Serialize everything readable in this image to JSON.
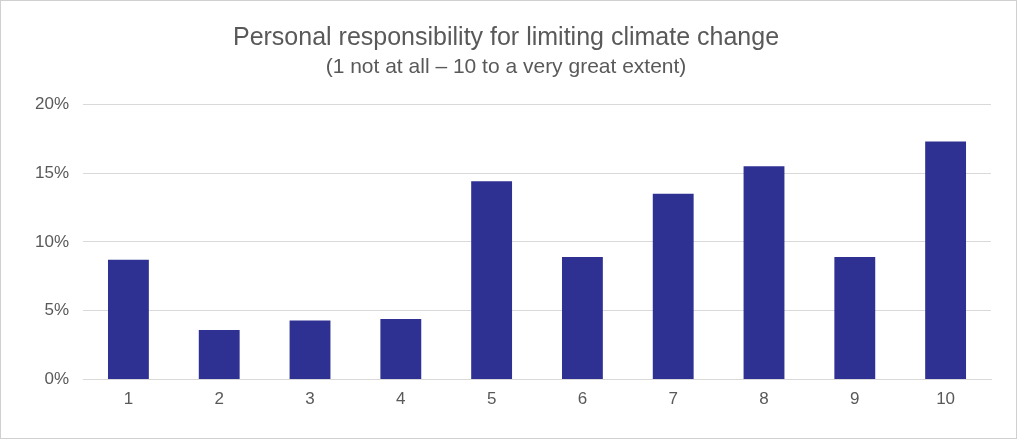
{
  "chart_data": {
    "type": "bar",
    "title": "Personal responsibility for limiting climate change",
    "subtitle": "(1 not at all – 10 to a very great extent)",
    "categories": [
      "1",
      "2",
      "3",
      "4",
      "5",
      "6",
      "7",
      "8",
      "9",
      "10"
    ],
    "values": [
      8.7,
      3.6,
      4.3,
      4.4,
      14.4,
      8.9,
      13.5,
      15.5,
      8.9,
      17.3
    ],
    "color": "#2e3192",
    "ylim": [
      0,
      20
    ],
    "yticks": [
      {
        "value": 0,
        "label": "0%"
      },
      {
        "value": 5,
        "label": "5%"
      },
      {
        "value": 10,
        "label": "10%"
      },
      {
        "value": 15,
        "label": "15%"
      },
      {
        "value": 20,
        "label": "20%"
      }
    ],
    "grid": "y",
    "legend": false
  }
}
